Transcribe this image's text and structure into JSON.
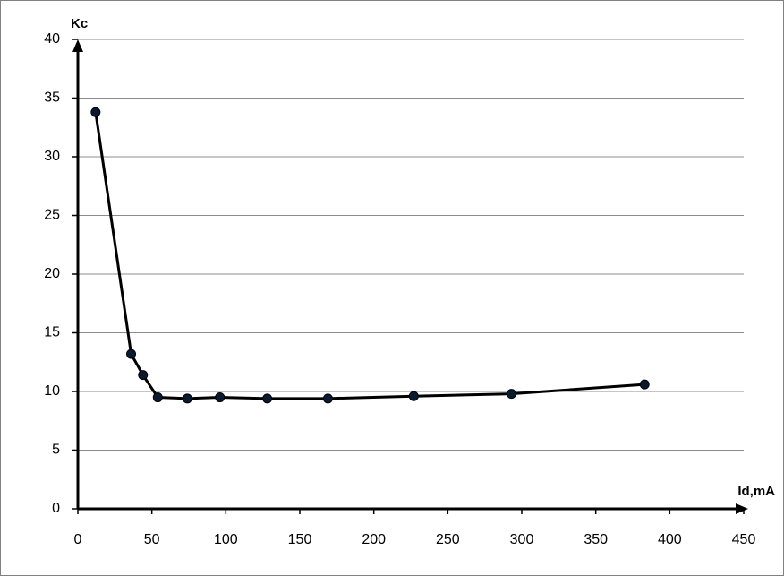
{
  "chart_data": {
    "type": "line",
    "x_label": "Id,mA",
    "y_label": "Kc",
    "x": [
      12,
      36,
      44,
      54,
      74,
      96,
      128,
      169,
      227,
      293,
      383
    ],
    "values": [
      33.8,
      13.2,
      11.4,
      9.5,
      9.4,
      9.5,
      9.4,
      9.4,
      9.6,
      9.8,
      10.6
    ],
    "color": "#000000",
    "marker_color": "#0b1a33",
    "xlim": [
      0,
      450
    ],
    "xticks": [
      0,
      50,
      100,
      150,
      200,
      250,
      300,
      350,
      400,
      450
    ],
    "ylim": [
      0,
      40
    ],
    "yticks": [
      0,
      5,
      10,
      15,
      20,
      25,
      30,
      35,
      40
    ],
    "grid": true
  }
}
